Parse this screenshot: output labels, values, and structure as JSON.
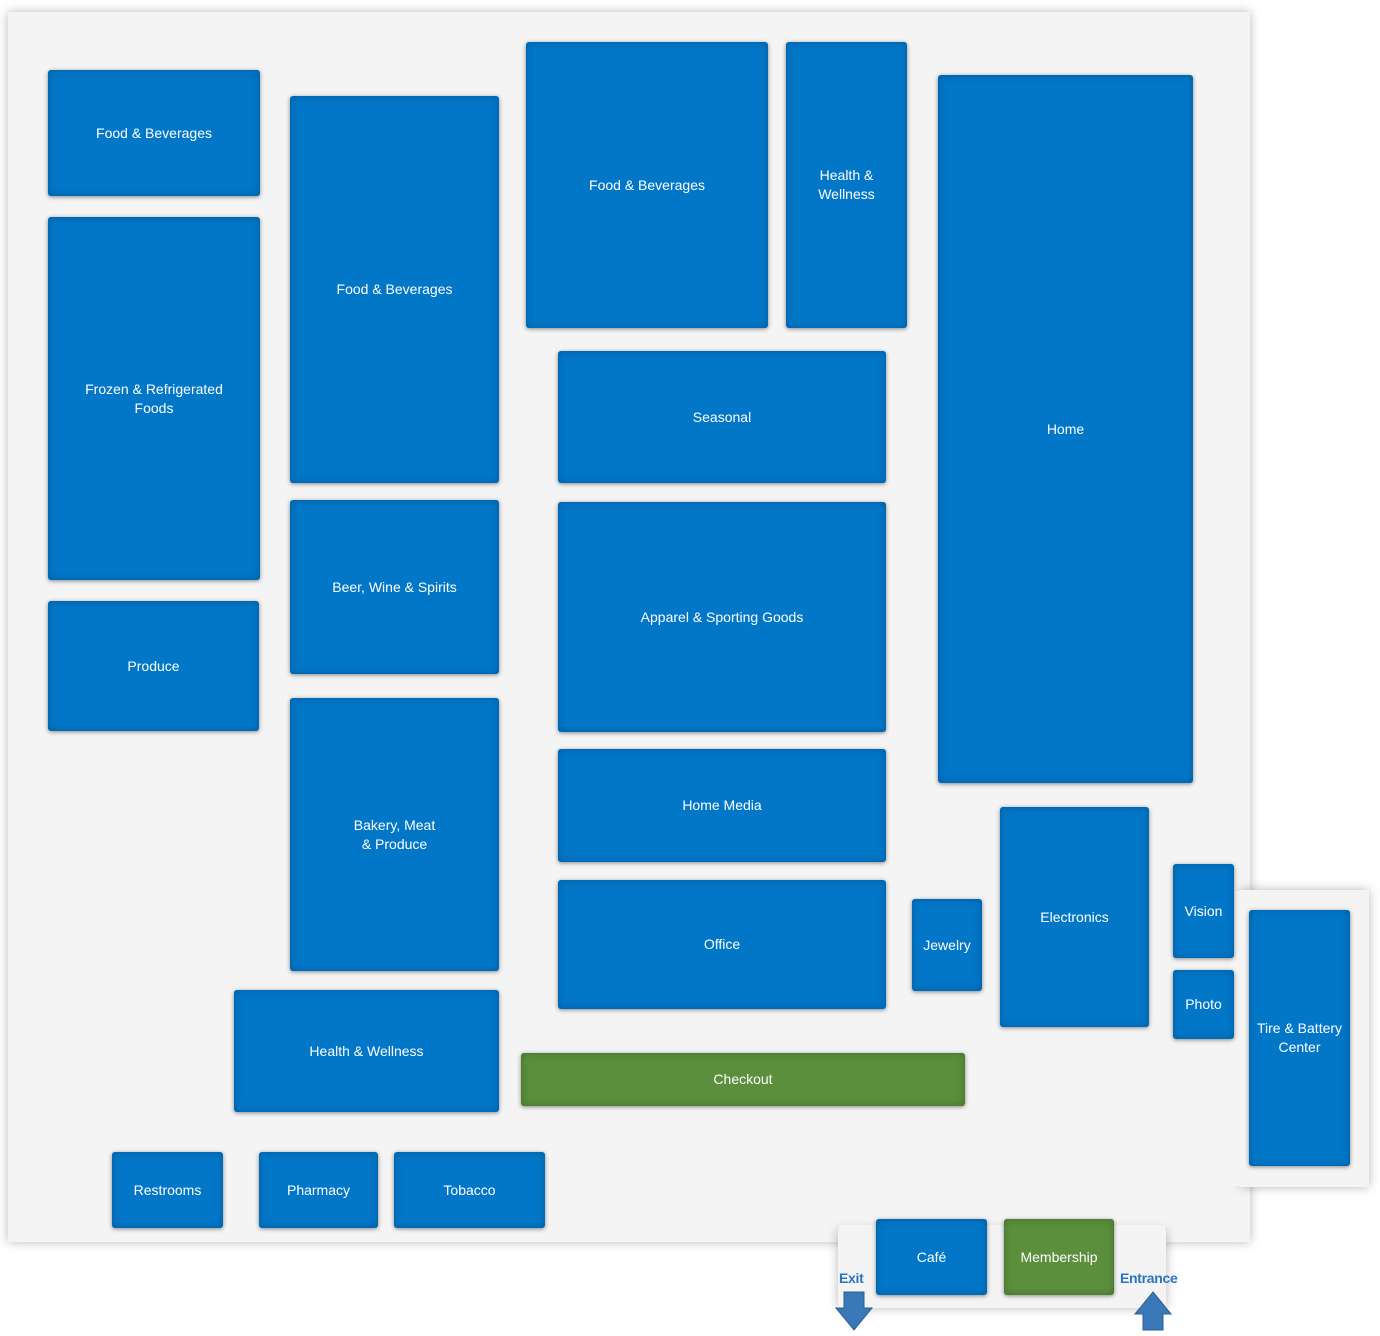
{
  "departments": {
    "food_bev_1": "Food & Beverages",
    "frozen": "Frozen & Refrigerated\nFoods",
    "produce": "Produce",
    "food_bev_2": "Food & Beverages",
    "beer_wine": "Beer, Wine & Spirits",
    "bakery": "Bakery, Meat\n& Produce",
    "health_wellness_1": "Health & Wellness",
    "food_bev_3": "Food & Beverages",
    "health_wellness_2": "Health &\nWellness",
    "seasonal": "Seasonal",
    "apparel": "Apparel & Sporting Goods",
    "home_media": "Home Media",
    "office": "Office",
    "home": "Home",
    "electronics": "Electronics",
    "jewelry": "Jewelry",
    "vision": "Vision",
    "photo": "Photo",
    "tire_battery": "Tire & Battery\nCenter",
    "checkout": "Checkout",
    "restrooms": "Restrooms",
    "pharmacy": "Pharmacy",
    "tobacco": "Tobacco",
    "cafe": "Café",
    "membership": "Membership"
  },
  "doors": {
    "exit": "Exit",
    "entrance": "Entrance"
  },
  "colors": {
    "department": "#0277c7",
    "service": "#5b8f3c",
    "floor": "#f4f4f4",
    "door_text": "#2a74c0",
    "arrow": "#3a78b8"
  }
}
